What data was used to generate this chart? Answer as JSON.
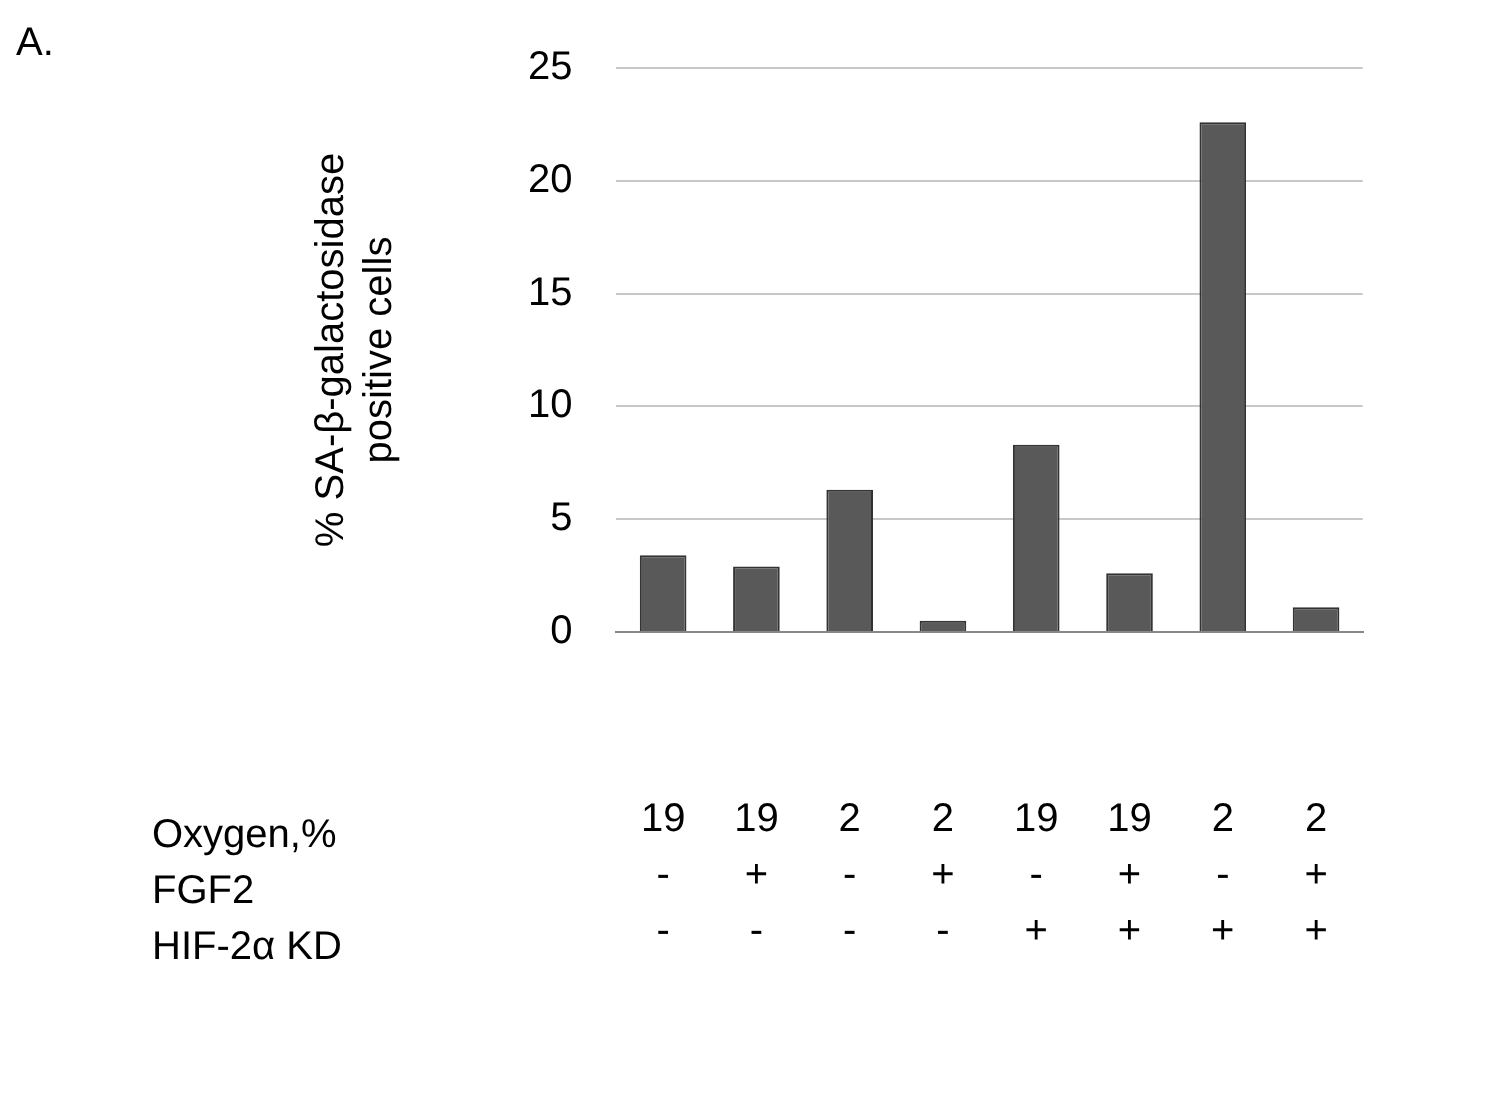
{
  "chart_data": {
    "type": "bar",
    "categories": [
      "19\n-\n-",
      "19\n+\n-",
      "2\n-\n-",
      "2\n+\n-",
      "19\n-\n+",
      "19\n+\n+",
      "2\n-\n+",
      "2\n+\n+"
    ],
    "values": [
      3.4,
      2.9,
      6.3,
      0.5,
      8.3,
      2.6,
      22.6,
      1.1
    ],
    "color": "#595959",
    "ylabel": "% SA-β-galactosidase\npositive cells",
    "ylim": [
      0,
      25
    ],
    "yticks": [
      0,
      5,
      10,
      15,
      20,
      25
    ],
    "grid": "y",
    "legend": false,
    "annotations": [
      "A.",
      "Oxygen,%",
      "FGF2",
      "HIF-2α KD"
    ]
  }
}
